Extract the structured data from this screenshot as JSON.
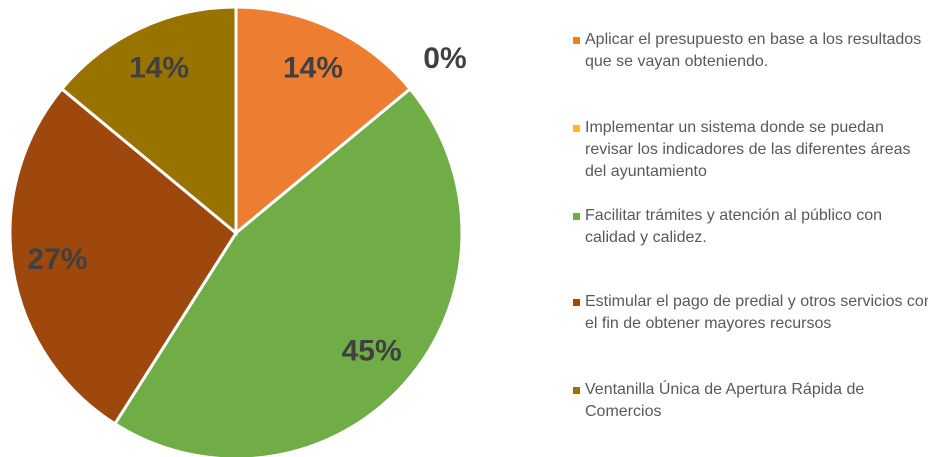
{
  "chart_data": {
    "type": "pie",
    "categories": [
      "Aplicar el presupuesto en base a los resultados que se vayan obteniendo.",
      "Implementar un sistema donde se puedan revisar los indicadores de las diferentes áreas del ayuntamiento",
      "Facilitar trámites y atención al público con calidad y calidez.",
      "Estimular el pago de predial y otros servicios con el fin de obtener mayores recursos",
      "Ventanilla Única de Apertura Rápida de Comercios"
    ],
    "values": [
      14,
      0,
      45,
      27,
      14
    ],
    "value_labels": [
      "14%",
      "0%",
      "45%",
      "27%",
      "14%"
    ],
    "colors": [
      "#ed7d31",
      "#ffc000",
      "#70ad47",
      "#9e480e",
      "#997300"
    ],
    "legend": "right"
  }
}
